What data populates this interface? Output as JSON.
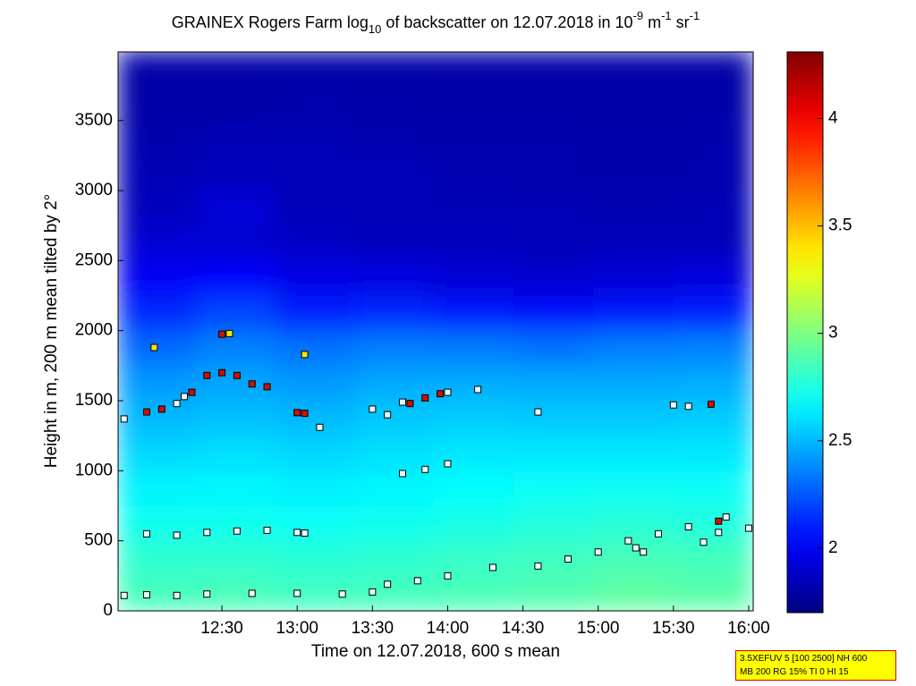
{
  "chart_data": {
    "type": "heatmap",
    "title_parts": [
      "GRAINEX Rogers Farm log",
      "10",
      " of backscatter on 12.07.2018 in 10",
      "-9",
      " m",
      "-1",
      " sr",
      "-1"
    ],
    "xlabel": "Time on 12.07.2018, 600 s mean",
    "ylabel": "Height in m, 200 m mean tilted by 2°",
    "xlim": [
      11.81,
      16.03
    ],
    "xticks": [
      {
        "value": 12.5,
        "label": "12:30"
      },
      {
        "value": 13,
        "label": "13:00"
      },
      {
        "value": 13.5,
        "label": "13:30"
      },
      {
        "value": 14,
        "label": "14:00"
      },
      {
        "value": 14.5,
        "label": "14:30"
      },
      {
        "value": 15,
        "label": "15:00"
      },
      {
        "value": 15.5,
        "label": "15:30"
      },
      {
        "value": 16,
        "label": "16:00"
      }
    ],
    "ylim": [
      0,
      3990
    ],
    "yticks": [
      0,
      500,
      1000,
      1500,
      2000,
      2500,
      3000,
      3500
    ],
    "clim": [
      1.7,
      4.31
    ],
    "cticks": [
      2,
      2.5,
      3,
      3.5,
      4
    ],
    "colormap": "jet",
    "x_edges": [
      11.81,
      12.33,
      12.86,
      13.39,
      13.91,
      14.44,
      14.97,
      15.5,
      16.03
    ],
    "y_edges": [
      0,
      250,
      500,
      750,
      1000,
      1250,
      1500,
      1750,
      2000,
      2250,
      2500,
      2750,
      3000,
      3250,
      3500,
      3750,
      4000
    ],
    "z": [
      [
        2.85,
        2.86,
        2.84,
        2.85,
        2.86,
        2.88,
        2.92,
        2.9
      ],
      [
        2.8,
        2.8,
        2.78,
        2.8,
        2.82,
        2.84,
        2.86,
        2.85
      ],
      [
        2.72,
        2.72,
        2.7,
        2.72,
        2.74,
        2.76,
        2.78,
        2.76
      ],
      [
        2.65,
        2.66,
        2.64,
        2.66,
        2.68,
        2.7,
        2.7,
        2.7
      ],
      [
        2.58,
        2.6,
        2.58,
        2.6,
        2.62,
        2.62,
        2.62,
        2.62
      ],
      [
        2.5,
        2.52,
        2.5,
        2.54,
        2.55,
        2.54,
        2.54,
        2.55
      ],
      [
        2.42,
        2.45,
        2.42,
        2.46,
        2.47,
        2.46,
        2.46,
        2.47
      ],
      [
        2.3,
        2.36,
        2.32,
        2.35,
        2.34,
        2.32,
        2.35,
        2.36
      ],
      [
        2.12,
        2.2,
        2.1,
        2.12,
        2.08,
        2.05,
        2.08,
        2.1
      ],
      [
        2.0,
        2.02,
        1.96,
        1.95,
        1.92,
        1.9,
        1.92,
        1.94
      ],
      [
        1.92,
        1.9,
        1.88,
        1.86,
        1.86,
        1.85,
        1.86,
        1.85
      ],
      [
        1.86,
        1.92,
        1.85,
        1.84,
        1.84,
        1.84,
        1.83,
        1.84
      ],
      [
        1.84,
        1.86,
        1.84,
        1.85,
        1.83,
        1.82,
        1.82,
        1.82
      ],
      [
        1.82,
        1.84,
        1.84,
        1.82,
        1.82,
        1.82,
        1.81,
        1.82
      ],
      [
        1.8,
        1.8,
        1.82,
        1.81,
        1.8,
        1.8,
        1.8,
        1.8
      ],
      [
        1.8,
        1.8,
        1.8,
        1.8,
        1.8,
        1.8,
        1.8,
        1.8
      ]
    ],
    "series": [
      {
        "color": "#e8f8f8",
        "x": [
          11.85,
          12.0,
          12.2,
          12.4,
          12.7,
          13.0,
          13.3,
          13.5,
          13.6,
          13.8,
          14.0,
          14.3,
          14.6,
          14.8,
          15.0,
          15.2,
          15.25,
          15.3,
          15.4,
          15.6,
          15.8,
          16.0,
          12.0,
          12.2,
          12.4,
          12.6,
          12.8,
          13.0,
          13.05,
          11.85,
          12.2,
          12.25,
          13.15,
          13.5,
          13.6,
          13.7,
          14.0,
          13.7,
          13.85,
          14.0,
          14.2,
          14.6,
          15.5,
          15.6,
          15.85,
          15.7
        ],
        "y": [
          110,
          115,
          110,
          120,
          125,
          125,
          120,
          135,
          190,
          215,
          250,
          310,
          320,
          370,
          420,
          500,
          450,
          420,
          550,
          600,
          560,
          590,
          550,
          540,
          560,
          570,
          575,
          560,
          555,
          1370,
          1480,
          1530,
          1310,
          1440,
          1400,
          1490,
          1560,
          980,
          1010,
          1050,
          1580,
          1420,
          1470,
          1460,
          670,
          490
        ]
      },
      {
        "color": "#cc1100",
        "x": [
          12.0,
          12.1,
          12.3,
          12.4,
          12.5,
          12.6,
          12.7,
          12.8,
          12.5,
          13.0,
          13.05,
          13.75,
          13.85,
          13.95,
          15.75,
          15.8
        ],
        "y": [
          1420,
          1440,
          1560,
          1680,
          1700,
          1680,
          1620,
          1600,
          1975,
          1415,
          1410,
          1480,
          1520,
          1550,
          1475,
          640
        ]
      },
      {
        "color": "#f5e600",
        "x": [
          12.05,
          12.55,
          13.05
        ],
        "y": [
          1880,
          1980,
          1830
        ]
      }
    ],
    "info_box": [
      "3.5XEFUV 5 [100 2500] NH 600",
      "MB 200 RG 15% TI 0 HI 15"
    ]
  }
}
